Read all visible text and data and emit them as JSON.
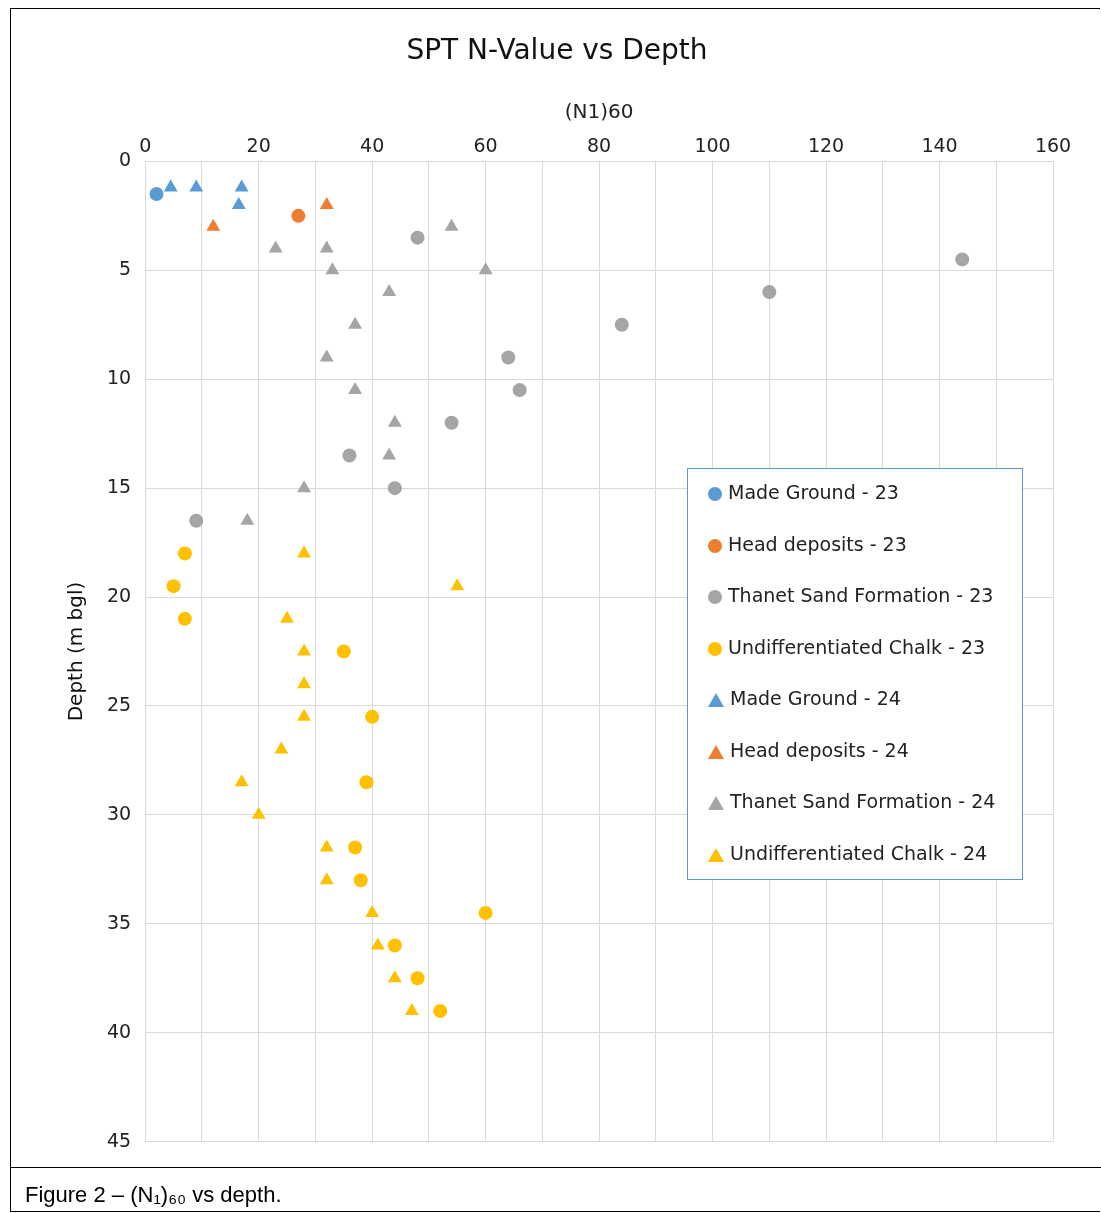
{
  "chart_data": {
    "type": "scatter",
    "title": "SPT N-Value vs Depth",
    "xlabel": "(N1)60",
    "ylabel": "Depth (m bgl)",
    "xlim": [
      0,
      160
    ],
    "xticks": [
      0,
      20,
      40,
      60,
      80,
      100,
      120,
      140,
      160
    ],
    "ylim": [
      45,
      0
    ],
    "yticks": [
      0,
      5,
      10,
      15,
      20,
      25,
      30,
      35,
      40,
      45
    ],
    "grid": true,
    "legend": "right",
    "annotations": [
      "Figure 2 – (N₁)₆₀ vs depth."
    ],
    "series": [
      {
        "name": "Made Ground - 23",
        "color": "#5b9bd5",
        "marker": "circle",
        "x": [
          2
        ],
        "values": [
          1.5
        ]
      },
      {
        "name": "Head deposits - 23",
        "color": "#ed7d31",
        "marker": "circle",
        "x": [
          27
        ],
        "values": [
          2.5
        ]
      },
      {
        "name": "Thanet Sand Formation - 23",
        "color": "#a5a5a5",
        "marker": "circle",
        "x": [
          48,
          144,
          110,
          84,
          64,
          66,
          54,
          36,
          44,
          9
        ],
        "values": [
          3.5,
          4.5,
          6,
          7.5,
          9,
          10.5,
          12,
          13.5,
          15,
          16.5
        ]
      },
      {
        "name": "Undifferentiated Chalk - 23",
        "color": "#ffc000",
        "marker": "circle",
        "x": [
          7,
          5,
          7,
          35,
          40,
          39,
          37,
          38,
          60,
          44,
          48,
          52
        ],
        "values": [
          18,
          19.5,
          21,
          22.5,
          25.5,
          28.5,
          31.5,
          33,
          34.5,
          36,
          37.5,
          39
        ]
      },
      {
        "name": "Made Ground - 24",
        "color": "#5b9bd5",
        "marker": "triangle",
        "x": [
          4.5,
          9,
          17,
          16.5
        ],
        "values": [
          1.2,
          1.2,
          1.2,
          2
        ]
      },
      {
        "name": "Head deposits - 24",
        "color": "#ed7d31",
        "marker": "triangle",
        "x": [
          32,
          12
        ],
        "values": [
          2,
          3
        ]
      },
      {
        "name": "Thanet Sand Formation - 24",
        "color": "#a5a5a5",
        "marker": "triangle",
        "x": [
          54,
          23,
          32,
          33,
          60,
          43,
          37,
          32,
          37,
          44,
          43,
          28,
          18
        ],
        "values": [
          3,
          4,
          4,
          5,
          5,
          6,
          7.5,
          9,
          10.5,
          12,
          13.5,
          15,
          16.5
        ]
      },
      {
        "name": "Undifferentiated Chalk - 24",
        "color": "#ffc000",
        "marker": "triangle",
        "x": [
          28,
          55,
          25,
          28,
          28,
          28,
          24,
          17,
          20,
          32,
          32,
          40,
          41,
          44,
          47
        ],
        "values": [
          18,
          19.5,
          21,
          22.5,
          24,
          25.5,
          27,
          28.5,
          30,
          31.5,
          33,
          34.5,
          36,
          37.5,
          39
        ]
      }
    ]
  }
}
